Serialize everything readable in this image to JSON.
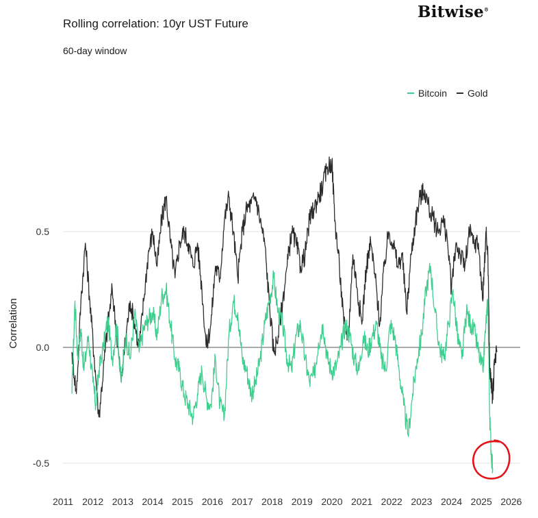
{
  "header": {
    "title": "Rolling correlation: 10yr UST Future",
    "subtitle": "60-day window",
    "brand": "Bitwise"
  },
  "colors": {
    "bitcoin": "#3ecf8e",
    "gold": "#2b2b2b",
    "annotation": "#e0141a",
    "grid": "#e3e3e3",
    "zero": "#555555"
  },
  "chart_data": {
    "type": "line",
    "title": "Rolling correlation: 10yr UST Future",
    "subtitle": "60-day window",
    "ylabel": "Correlation",
    "xlabel": "",
    "ylim": [
      -0.6,
      0.85
    ],
    "xlim": [
      2011,
      2026.3
    ],
    "yticks": [
      0.5,
      0.0,
      -0.5
    ],
    "ytick_labels": [
      "0.5",
      "0.0",
      "-0.5"
    ],
    "xticks": [
      2011,
      2012,
      2013,
      2014,
      2015,
      2016,
      2017,
      2018,
      2019,
      2020,
      2021,
      2022,
      2023,
      2024,
      2025,
      2026
    ],
    "xtick_labels": [
      "2011",
      "2012",
      "2013",
      "2014",
      "2015",
      "2016",
      "2017",
      "2018",
      "2019",
      "2020",
      "2021",
      "2022",
      "2023",
      "2024",
      "2025",
      "2026"
    ],
    "grid": true,
    "legend_position": "top-right",
    "series": [
      {
        "name": "Bitcoin",
        "x": [
          2011.3,
          2011.4,
          2011.5,
          2011.6,
          2011.7,
          2011.85,
          2012.0,
          2012.1,
          2012.2,
          2012.35,
          2012.5,
          2012.65,
          2012.8,
          2012.95,
          2013.1,
          2013.25,
          2013.4,
          2013.55,
          2013.7,
          2013.85,
          2014.0,
          2014.15,
          2014.3,
          2014.45,
          2014.6,
          2014.75,
          2014.9,
          2015.05,
          2015.2,
          2015.35,
          2015.5,
          2015.65,
          2015.8,
          2015.95,
          2016.1,
          2016.25,
          2016.4,
          2016.55,
          2016.7,
          2016.85,
          2017.0,
          2017.15,
          2017.3,
          2017.45,
          2017.6,
          2017.75,
          2017.9,
          2018.05,
          2018.2,
          2018.35,
          2018.5,
          2018.65,
          2018.8,
          2018.95,
          2019.1,
          2019.25,
          2019.4,
          2019.55,
          2019.7,
          2019.85,
          2020.0,
          2020.15,
          2020.3,
          2020.45,
          2020.6,
          2020.75,
          2020.9,
          2021.05,
          2021.2,
          2021.35,
          2021.5,
          2021.65,
          2021.8,
          2021.95,
          2022.1,
          2022.25,
          2022.4,
          2022.55,
          2022.7,
          2022.85,
          2023.0,
          2023.15,
          2023.3,
          2023.45,
          2023.6,
          2023.75,
          2023.9,
          2024.05,
          2024.2,
          2024.35,
          2024.5,
          2024.65,
          2024.8,
          2024.95,
          2025.05,
          2025.15,
          2025.22,
          2025.28,
          2025.33,
          2025.38
        ],
        "y": [
          -0.2,
          0.2,
          -0.05,
          0.08,
          -0.1,
          0.05,
          -0.15,
          -0.25,
          -0.1,
          0.0,
          0.12,
          -0.05,
          0.1,
          -0.15,
          0.05,
          -0.05,
          0.15,
          -0.02,
          0.08,
          0.12,
          0.15,
          0.05,
          0.22,
          0.25,
          0.1,
          -0.05,
          -0.1,
          -0.2,
          -0.25,
          -0.3,
          -0.2,
          -0.1,
          -0.22,
          -0.25,
          -0.05,
          -0.25,
          -0.3,
          0.05,
          0.2,
          0.15,
          -0.05,
          -0.1,
          -0.2,
          -0.15,
          -0.05,
          0.1,
          0.2,
          0.3,
          0.15,
          0.1,
          -0.05,
          -0.1,
          0.05,
          0.1,
          -0.05,
          -0.15,
          -0.12,
          0.02,
          0.1,
          -0.05,
          -0.1,
          -0.08,
          0.0,
          0.1,
          0.05,
          -0.05,
          -0.1,
          0.05,
          -0.02,
          0.05,
          0.1,
          -0.05,
          -0.1,
          0.1,
          0.05,
          -0.1,
          -0.25,
          -0.38,
          -0.2,
          -0.05,
          0.05,
          0.25,
          0.35,
          0.15,
          0.0,
          -0.05,
          0.1,
          0.25,
          0.05,
          -0.05,
          0.15,
          0.1,
          0.05,
          -0.05,
          -0.1,
          0.1,
          0.2,
          -0.3,
          -0.45,
          -0.52
        ]
      },
      {
        "name": "Gold",
        "x": [
          2011.3,
          2011.45,
          2011.6,
          2011.75,
          2011.9,
          2012.05,
          2012.2,
          2012.35,
          2012.5,
          2012.65,
          2012.8,
          2012.95,
          2013.1,
          2013.25,
          2013.4,
          2013.55,
          2013.7,
          2013.85,
          2014.0,
          2014.15,
          2014.3,
          2014.45,
          2014.6,
          2014.75,
          2014.9,
          2015.05,
          2015.2,
          2015.35,
          2015.5,
          2015.65,
          2015.8,
          2015.95,
          2016.1,
          2016.25,
          2016.4,
          2016.55,
          2016.7,
          2016.85,
          2017.0,
          2017.15,
          2017.3,
          2017.45,
          2017.6,
          2017.75,
          2017.9,
          2018.05,
          2018.2,
          2018.35,
          2018.5,
          2018.65,
          2018.8,
          2018.95,
          2019.1,
          2019.25,
          2019.4,
          2019.55,
          2019.7,
          2019.85,
          2020.0,
          2020.1,
          2020.25,
          2020.4,
          2020.55,
          2020.7,
          2020.85,
          2021.0,
          2021.15,
          2021.3,
          2021.45,
          2021.6,
          2021.75,
          2021.9,
          2022.05,
          2022.2,
          2022.35,
          2022.5,
          2022.65,
          2022.8,
          2022.95,
          2023.1,
          2023.25,
          2023.4,
          2023.55,
          2023.7,
          2023.85,
          2024.0,
          2024.15,
          2024.3,
          2024.45,
          2024.6,
          2024.75,
          2024.9,
          2025.05,
          2025.15,
          2025.22,
          2025.28,
          2025.33,
          2025.38,
          2025.45,
          2025.52
        ],
        "y": [
          -0.02,
          -0.2,
          0.2,
          0.45,
          0.2,
          -0.05,
          -0.3,
          -0.1,
          0.1,
          0.25,
          0.05,
          -0.15,
          0.05,
          0.2,
          0.1,
          0.0,
          0.2,
          0.4,
          0.5,
          0.35,
          0.55,
          0.65,
          0.45,
          0.3,
          0.45,
          0.5,
          0.45,
          0.35,
          0.45,
          0.25,
          0.0,
          0.1,
          0.35,
          0.3,
          0.55,
          0.65,
          0.5,
          0.3,
          0.5,
          0.6,
          0.62,
          0.65,
          0.55,
          0.45,
          0.2,
          -0.02,
          0.05,
          0.2,
          0.35,
          0.5,
          0.45,
          0.35,
          0.4,
          0.55,
          0.6,
          0.65,
          0.7,
          0.78,
          0.8,
          0.55,
          0.35,
          0.1,
          0.05,
          0.4,
          0.25,
          0.1,
          0.35,
          0.45,
          0.3,
          0.1,
          0.35,
          0.5,
          0.45,
          0.35,
          0.4,
          0.15,
          0.4,
          0.55,
          0.65,
          0.68,
          0.6,
          0.55,
          0.5,
          0.55,
          0.48,
          0.25,
          0.45,
          0.4,
          0.35,
          0.5,
          0.45,
          0.45,
          0.2,
          0.5,
          0.4,
          -0.1,
          -0.15,
          -0.22,
          -0.05,
          -0.02
        ]
      }
    ],
    "annotations": [
      {
        "type": "hand-drawn-circle",
        "x": 2025.35,
        "y": -0.49,
        "color": "#e0141a"
      }
    ]
  }
}
